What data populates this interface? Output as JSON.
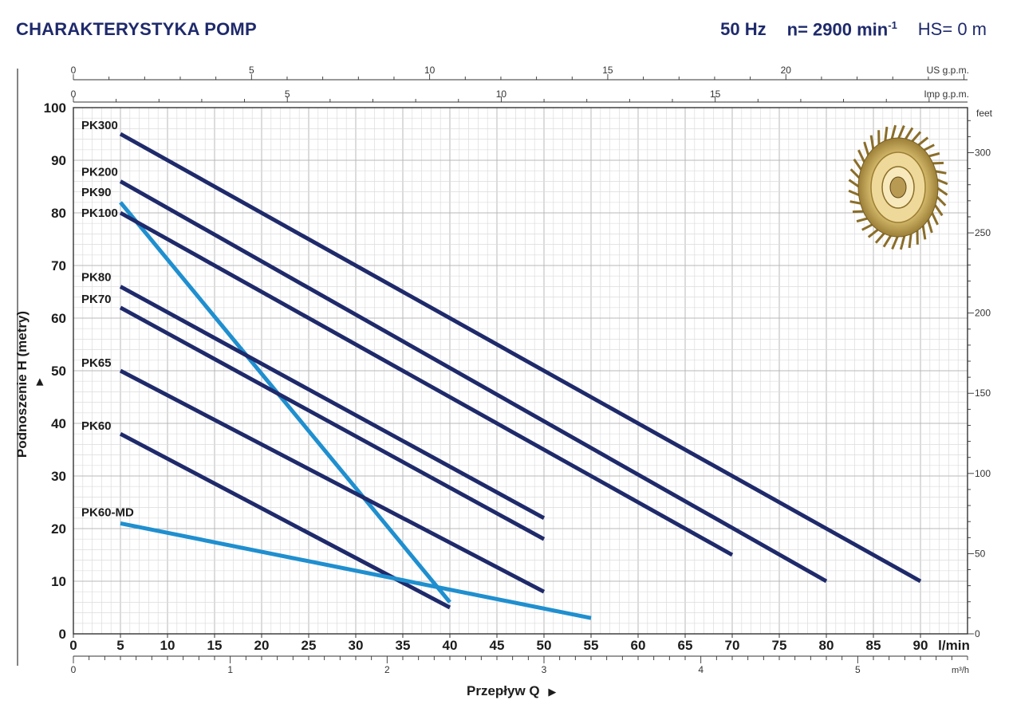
{
  "header": {
    "title": "CHARAKTERYSTYKA POMP",
    "freq": "50 Hz",
    "speed": "n= 2900 min",
    "speed_sup": "-1",
    "hs": "HS= 0 m"
  },
  "chart_data": {
    "type": "line",
    "x_unit_label": "l/min",
    "x_range": [
      0,
      95
    ],
    "y_range": [
      0,
      100
    ],
    "ylabel": "Podnoszenie H  (metry)",
    "xlabel": "Przepływ Q",
    "x_ticks": [
      0,
      5,
      10,
      15,
      20,
      25,
      30,
      35,
      40,
      45,
      50,
      55,
      60,
      65,
      70,
      75,
      80,
      85,
      90
    ],
    "y_ticks": [
      0,
      10,
      20,
      30,
      40,
      50,
      60,
      70,
      80,
      90,
      100
    ],
    "grid": true,
    "axis_us_gpm": {
      "label": "US g.p.m.",
      "ticks": [
        "0",
        "5",
        "10",
        "15",
        "20"
      ],
      "values": [
        0,
        5,
        10,
        15,
        20
      ]
    },
    "axis_imp_gpm": {
      "label": "Imp g.p.m.",
      "ticks": [
        "0",
        "5",
        "10",
        "15"
      ],
      "values": [
        0,
        5,
        10,
        15
      ]
    },
    "axis_m3h": {
      "label": "m³/h",
      "ticks": [
        "0",
        "1",
        "2",
        "3",
        "4",
        "5"
      ],
      "values": [
        0,
        1,
        2,
        3,
        4,
        5
      ]
    },
    "axis_feet": {
      "label": "feet",
      "ticks": [
        "0",
        "50",
        "100",
        "150",
        "200",
        "250",
        "300"
      ],
      "values": [
        0,
        50,
        100,
        150,
        200,
        250,
        300
      ]
    },
    "series": [
      {
        "name": "PK300",
        "color": "#1f2a6b",
        "x": [
          5,
          90
        ],
        "y": [
          95,
          10
        ]
      },
      {
        "name": "PK200",
        "color": "#1f2a6b",
        "x": [
          5,
          80
        ],
        "y": [
          86,
          10
        ]
      },
      {
        "name": "PK90",
        "color": "#1f8fcf",
        "x": [
          5,
          40
        ],
        "y": [
          82,
          6
        ]
      },
      {
        "name": "PK100",
        "color": "#1f2a6b",
        "x": [
          5,
          70
        ],
        "y": [
          80,
          15
        ]
      },
      {
        "name": "PK80",
        "color": "#1f2a6b",
        "x": [
          5,
          50
        ],
        "y": [
          66,
          22
        ]
      },
      {
        "name": "PK70",
        "color": "#1f2a6b",
        "x": [
          5,
          50
        ],
        "y": [
          62,
          18
        ]
      },
      {
        "name": "PK65",
        "color": "#1f2a6b",
        "x": [
          5,
          50
        ],
        "y": [
          50,
          8
        ]
      },
      {
        "name": "PK60",
        "color": "#1f2a6b",
        "x": [
          5,
          40
        ],
        "y": [
          38,
          5
        ]
      },
      {
        "name": "PK60-MD",
        "color": "#1f8fcf",
        "x": [
          5,
          55
        ],
        "y": [
          21,
          3
        ]
      }
    ]
  }
}
